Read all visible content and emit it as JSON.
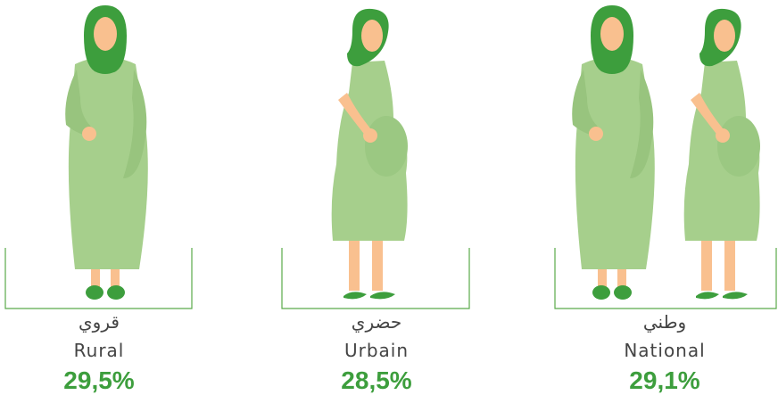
{
  "groups": [
    {
      "label_ar": "قروي",
      "label_fr": "Rural",
      "value": "29,5%"
    },
    {
      "label_ar": "حضري",
      "label_fr": "Urbain",
      "value": "28,5%"
    },
    {
      "label_ar": "وطني",
      "label_fr": "National",
      "value": "29,1%"
    }
  ]
}
